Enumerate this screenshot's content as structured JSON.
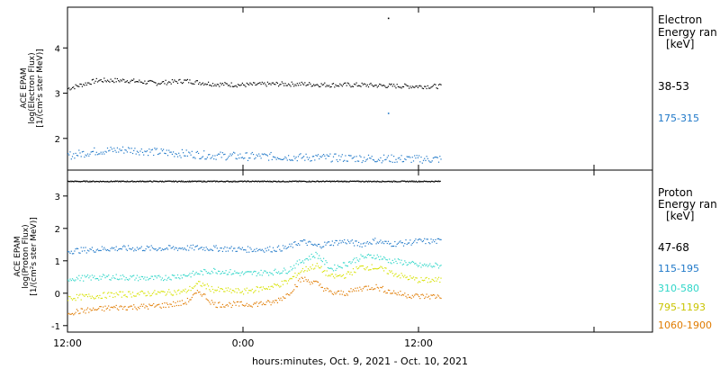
{
  "chart_data": [
    {
      "type": "scatter",
      "panel": "electron",
      "ylabel_lines": [
        "ACE EPAM",
        "log(Electron Flux)",
        "[1/(cm²s ster MeV)]"
      ],
      "legend_title": [
        "Electron",
        "Energy ran",
        "[keV]"
      ],
      "ylim": [
        1.3,
        4.9
      ],
      "yticks": [
        2,
        3,
        4
      ],
      "grid": false,
      "legend_placement": "right",
      "series": [
        {
          "name": "38-53",
          "color": "#000000",
          "base": 3.2,
          "profile_x": [
            0,
            2,
            4,
            6,
            8,
            10,
            12,
            14,
            16,
            18,
            20,
            22,
            24
          ],
          "profile_y": [
            3.1,
            3.28,
            3.28,
            3.22,
            3.27,
            3.2,
            3.18,
            3.2,
            3.2,
            3.18,
            3.18,
            3.16,
            3.15
          ],
          "outliers": [
            [
              21.9,
              4.65
            ]
          ]
        },
        {
          "name": "175-315",
          "color": "#1f78c8",
          "profile_x": [
            0,
            2,
            4,
            6,
            8,
            10,
            12,
            14,
            16,
            18,
            20,
            22,
            24
          ],
          "profile_y": [
            1.62,
            1.72,
            1.75,
            1.7,
            1.66,
            1.62,
            1.6,
            1.6,
            1.58,
            1.57,
            1.56,
            1.55,
            1.54
          ],
          "outliers": [
            [
              21.9,
              2.55
            ]
          ]
        }
      ]
    },
    {
      "type": "scatter",
      "panel": "proton",
      "ylabel_lines": [
        "ACE EPAM",
        "log(Proton Flux)",
        "[1/(cm²s ster MeV)]"
      ],
      "legend_title": [
        "Proton",
        "Energy ran",
        "[keV]"
      ],
      "ylim": [
        -1.2,
        3.8
      ],
      "yticks": [
        -1,
        0,
        1,
        2,
        3
      ],
      "grid": false,
      "legend_placement": "right",
      "series": [
        {
          "name": "",
          "color": "#000000",
          "profile_x": [
            0,
            24
          ],
          "profile_y": [
            3.45,
            3.45
          ],
          "outliers": []
        },
        {
          "name": "47-68",
          "color": "#000000",
          "label_only": true,
          "profile_x": [],
          "profile_y": [],
          "outliers": []
        },
        {
          "name": "115-195",
          "color": "#1f78c8",
          "profile_x": [
            0,
            3,
            6,
            9,
            12,
            13,
            14,
            15,
            16,
            17,
            18,
            19,
            20,
            21,
            22,
            23,
            24
          ],
          "profile_y": [
            1.3,
            1.38,
            1.38,
            1.4,
            1.35,
            1.35,
            1.36,
            1.4,
            1.6,
            1.45,
            1.55,
            1.6,
            1.5,
            1.62,
            1.52,
            1.55,
            1.6
          ],
          "outliers": []
        },
        {
          "name": "310-580",
          "color": "#2fd6c8",
          "profile_x": [
            0,
            3,
            6,
            8,
            10,
            12,
            14,
            15,
            16,
            17,
            18,
            19,
            20,
            21,
            22,
            23,
            24
          ],
          "profile_y": [
            0.45,
            0.5,
            0.45,
            0.55,
            0.7,
            0.6,
            0.65,
            0.7,
            1.0,
            1.2,
            0.75,
            0.9,
            1.1,
            1.15,
            1.0,
            0.95,
            0.85
          ],
          "outliers": []
        },
        {
          "name": "795-1193",
          "color": "#d7e200",
          "profile_x": [
            0,
            3,
            6,
            8,
            9,
            10,
            12,
            14,
            15,
            16,
            17,
            18,
            19,
            20,
            21,
            22,
            23,
            24
          ],
          "profile_y": [
            -0.15,
            -0.05,
            0.0,
            0.05,
            0.3,
            0.1,
            0.05,
            0.2,
            0.35,
            0.7,
            0.85,
            0.5,
            0.55,
            0.8,
            0.8,
            0.65,
            0.5,
            0.4
          ],
          "outliers": []
        },
        {
          "name": "1060-1900",
          "color": "#e07b00",
          "profile_x": [
            0,
            3,
            6,
            8,
            9,
            10,
            12,
            14,
            15,
            16,
            17,
            18,
            19,
            20,
            21,
            22,
            23,
            24
          ],
          "profile_y": [
            -0.6,
            -0.45,
            -0.4,
            -0.3,
            0.05,
            -0.35,
            -0.35,
            -0.3,
            -0.05,
            0.45,
            0.3,
            0.0,
            0.0,
            0.15,
            0.2,
            0.05,
            -0.05,
            -0.1
          ],
          "outliers": []
        }
      ]
    }
  ],
  "x_axis": {
    "label": "hours:minutes, Oct.  9, 2021 - Oct. 10, 2021",
    "range_hours": [
      0,
      40
    ],
    "data_end_hours": 25.5,
    "ticks": [
      {
        "hours": 0,
        "label": "12:00"
      },
      {
        "hours": 12,
        "label": "0:00"
      },
      {
        "hours": 24,
        "label": "12:00"
      },
      {
        "hours": 36,
        "label": ""
      }
    ]
  }
}
